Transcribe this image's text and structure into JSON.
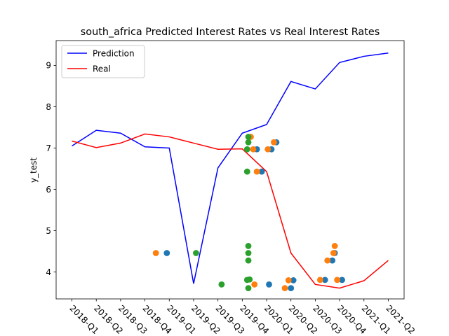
{
  "chart_data": {
    "type": "line",
    "title": "south_africa Predicted Interest Rates vs Real Interest Rates",
    "xlabel": "",
    "ylabel": "y_test",
    "categories": [
      "2018-Q1",
      "2018-Q2",
      "2018-Q3",
      "2018-Q4",
      "2019-Q1",
      "2019-Q2",
      "2019-Q3",
      "2019-Q4",
      "2020-Q1",
      "2020-Q2",
      "2020-Q3",
      "2020-Q4",
      "2021-Q1",
      "2021-Q2"
    ],
    "ylim": [
      3.35,
      9.6
    ],
    "yticks": [
      4,
      5,
      6,
      7,
      8,
      9
    ],
    "legend_position": "upper-left",
    "series": [
      {
        "name": "Prediction",
        "color": "#0000ff",
        "values": [
          7.05,
          7.43,
          7.36,
          7.03,
          7.0,
          3.72,
          6.52,
          7.36,
          7.57,
          8.61,
          8.43,
          9.07,
          9.22,
          9.3
        ]
      },
      {
        "name": "Real",
        "color": "#ff0000",
        "values": [
          7.17,
          7.01,
          7.12,
          7.34,
          7.27,
          7.12,
          6.97,
          6.98,
          6.43,
          4.46,
          3.7,
          3.61,
          3.79,
          4.28
        ]
      }
    ],
    "scatter": [
      {
        "color": "#1f77b4",
        "points": [
          [
            3.9,
            4.46
          ],
          [
            7.6,
            6.97
          ],
          [
            7.8,
            6.43
          ],
          [
            8.1,
            3.7
          ],
          [
            8.2,
            6.97
          ],
          [
            8.4,
            7.14
          ],
          [
            9.0,
            3.61
          ],
          [
            9.1,
            3.8
          ],
          [
            10.4,
            3.81
          ],
          [
            10.7,
            4.28
          ],
          [
            10.8,
            4.46
          ],
          [
            11.1,
            3.81
          ]
        ]
      },
      {
        "color": "#ff7f0e",
        "points": [
          [
            3.45,
            4.46
          ],
          [
            7.35,
            7.27
          ],
          [
            7.45,
            6.97
          ],
          [
            7.5,
            3.7
          ],
          [
            7.6,
            6.43
          ],
          [
            8.05,
            6.97
          ],
          [
            8.3,
            7.14
          ],
          [
            8.75,
            3.61
          ],
          [
            8.9,
            3.8
          ],
          [
            10.2,
            3.81
          ],
          [
            10.5,
            4.28
          ],
          [
            10.75,
            4.46
          ],
          [
            10.8,
            4.63
          ],
          [
            10.9,
            3.81
          ]
        ]
      },
      {
        "color": "#2ca02c",
        "points": [
          [
            5.1,
            4.46
          ],
          [
            6.15,
            3.7
          ],
          [
            7.2,
            6.97
          ],
          [
            7.2,
            6.43
          ],
          [
            7.25,
            7.27
          ],
          [
            7.25,
            7.14
          ],
          [
            7.2,
            3.81
          ],
          [
            7.25,
            4.63
          ],
          [
            7.25,
            4.46
          ],
          [
            7.25,
            4.28
          ],
          [
            7.25,
            3.61
          ],
          [
            7.3,
            3.82
          ]
        ]
      }
    ]
  }
}
